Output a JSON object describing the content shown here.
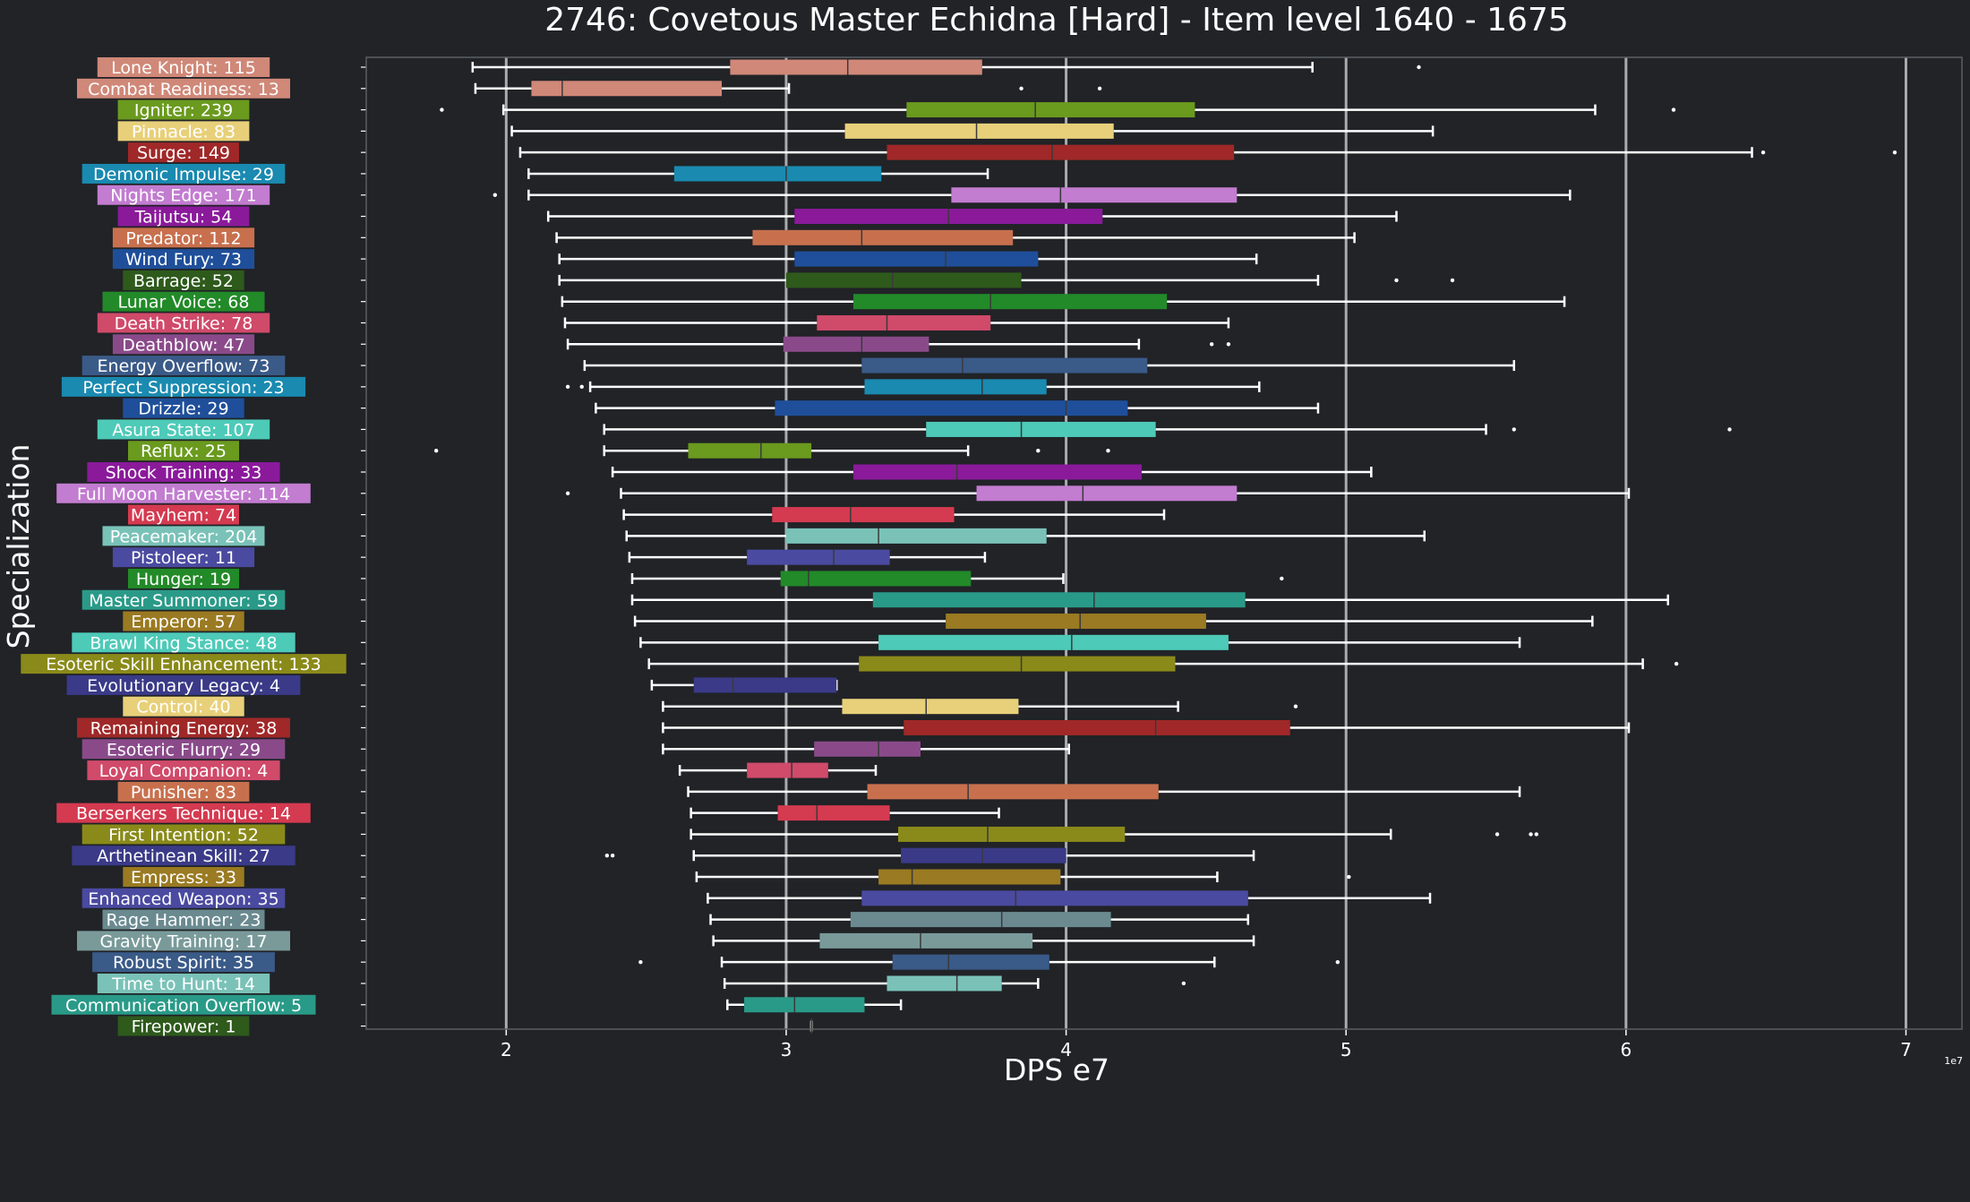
{
  "chart_data": {
    "type": "boxplot",
    "title": "2746: Covetous Master Echidna [Hard] - Item level 1640 - 1675",
    "xlabel": "DPS e7",
    "ylabel": "Specialization",
    "x_multiplier_label": "1e7",
    "xlim": [
      1.5,
      7.2
    ],
    "x_ticks": [
      2,
      3,
      4,
      5,
      6,
      7
    ],
    "x_tick_labels": [
      "2",
      "3",
      "4",
      "5",
      "6",
      "7"
    ],
    "grid": "vertical",
    "background": "#212327",
    "text_color": "#ffffff",
    "series": [
      {
        "label": "Lone Knight: 115",
        "color": "#d08878",
        "whisker_low": 1.88,
        "q1": 2.8,
        "median": 3.22,
        "q3": 3.7,
        "whisker_high": 4.88,
        "outliers": [
          5.26
        ]
      },
      {
        "label": "Combat Readiness: 13",
        "color": "#d08878",
        "whisker_low": 1.89,
        "q1": 2.09,
        "median": 2.2,
        "q3": 2.77,
        "whisker_high": 3.01,
        "outliers": [
          3.84,
          4.12
        ]
      },
      {
        "label": "Igniter: 239",
        "color": "#6a9a1e",
        "whisker_low": 1.99,
        "q1": 3.43,
        "median": 3.89,
        "q3": 4.46,
        "whisker_high": 5.89,
        "outliers": [
          1.77,
          6.17
        ]
      },
      {
        "label": "Pinnacle: 83",
        "color": "#e8d07a",
        "whisker_low": 2.02,
        "q1": 3.21,
        "median": 3.68,
        "q3": 4.17,
        "whisker_high": 5.31,
        "outliers": []
      },
      {
        "label": "Surge: 149",
        "color": "#a02828",
        "whisker_low": 2.05,
        "q1": 3.36,
        "median": 3.95,
        "q3": 4.6,
        "whisker_high": 6.45,
        "outliers": [
          6.49,
          6.96
        ]
      },
      {
        "label": "Demonic Impulse: 29",
        "color": "#1a8ab0",
        "whisker_low": 2.08,
        "q1": 2.6,
        "median": 3.0,
        "q3": 3.34,
        "whisker_high": 3.72,
        "outliers": []
      },
      {
        "label": "Nights Edge: 171",
        "color": "#c27cd0",
        "whisker_low": 2.08,
        "q1": 3.59,
        "median": 3.98,
        "q3": 4.61,
        "whisker_high": 5.8,
        "outliers": [
          1.96
        ]
      },
      {
        "label": "Taijutsu: 54",
        "color": "#8a1a9a",
        "whisker_low": 2.15,
        "q1": 3.03,
        "median": 3.58,
        "q3": 4.13,
        "whisker_high": 5.18,
        "outliers": []
      },
      {
        "label": "Predator: 112",
        "color": "#c8704e",
        "whisker_low": 2.18,
        "q1": 2.88,
        "median": 3.27,
        "q3": 3.81,
        "whisker_high": 5.03,
        "outliers": []
      },
      {
        "label": "Wind Fury: 73",
        "color": "#1f4f9a",
        "whisker_low": 2.19,
        "q1": 3.03,
        "median": 3.57,
        "q3": 3.9,
        "whisker_high": 4.68,
        "outliers": []
      },
      {
        "label": "Barrage: 52",
        "color": "#2e5a1c",
        "whisker_low": 2.19,
        "q1": 3.0,
        "median": 3.38,
        "q3": 3.84,
        "whisker_high": 4.9,
        "outliers": [
          5.18,
          5.38
        ]
      },
      {
        "label": "Lunar Voice: 68",
        "color": "#228a28",
        "whisker_low": 2.2,
        "q1": 3.24,
        "median": 3.73,
        "q3": 4.36,
        "whisker_high": 5.78,
        "outliers": []
      },
      {
        "label": "Death Strike: 78",
        "color": "#d04a6a",
        "whisker_low": 2.21,
        "q1": 3.11,
        "median": 3.36,
        "q3": 3.73,
        "whisker_high": 4.58,
        "outliers": []
      },
      {
        "label": "Deathblow: 47",
        "color": "#8a4a8a",
        "whisker_low": 2.22,
        "q1": 2.99,
        "median": 3.27,
        "q3": 3.51,
        "whisker_high": 4.26,
        "outliers": [
          4.52,
          4.58
        ]
      },
      {
        "label": "Energy Overflow: 73",
        "color": "#3a5a88",
        "whisker_low": 2.28,
        "q1": 3.27,
        "median": 3.63,
        "q3": 4.29,
        "whisker_high": 5.6,
        "outliers": []
      },
      {
        "label": "Perfect Suppression: 23",
        "color": "#1a8ab0",
        "whisker_low": 2.3,
        "q1": 3.28,
        "median": 3.7,
        "q3": 3.93,
        "whisker_high": 4.69,
        "outliers": [
          2.22,
          2.27
        ]
      },
      {
        "label": "Drizzle: 29",
        "color": "#1f4f9a",
        "whisker_low": 2.32,
        "q1": 2.96,
        "median": 4.0,
        "q3": 4.22,
        "whisker_high": 4.9,
        "outliers": []
      },
      {
        "label": "Asura State: 107",
        "color": "#4ecab8",
        "whisker_low": 2.35,
        "q1": 3.5,
        "median": 3.84,
        "q3": 4.32,
        "whisker_high": 5.5,
        "outliers": [
          5.6,
          6.37
        ]
      },
      {
        "label": "Reflux: 25",
        "color": "#6a9a1e",
        "whisker_low": 2.35,
        "q1": 2.65,
        "median": 2.91,
        "q3": 3.09,
        "whisker_high": 3.65,
        "outliers": [
          1.75,
          3.9,
          4.15
        ]
      },
      {
        "label": "Shock Training: 33",
        "color": "#8a1a9a",
        "whisker_low": 2.38,
        "q1": 3.24,
        "median": 3.61,
        "q3": 4.27,
        "whisker_high": 5.09,
        "outliers": []
      },
      {
        "label": "Full Moon Harvester: 114",
        "color": "#c27cd0",
        "whisker_low": 2.41,
        "q1": 3.68,
        "median": 4.06,
        "q3": 4.61,
        "whisker_high": 6.01,
        "outliers": [
          2.22
        ]
      },
      {
        "label": "Mayhem: 74",
        "color": "#d43a50",
        "whisker_low": 2.42,
        "q1": 2.95,
        "median": 3.23,
        "q3": 3.6,
        "whisker_high": 4.35,
        "outliers": []
      },
      {
        "label": "Peacemaker: 204",
        "color": "#7ac2b8",
        "whisker_low": 2.43,
        "q1": 3.0,
        "median": 3.33,
        "q3": 3.93,
        "whisker_high": 5.28,
        "outliers": []
      },
      {
        "label": "Pistoleer: 11",
        "color": "#4a4aa0",
        "whisker_low": 2.44,
        "q1": 2.86,
        "median": 3.17,
        "q3": 3.37,
        "whisker_high": 3.71,
        "outliers": []
      },
      {
        "label": "Hunger: 19",
        "color": "#228a28",
        "whisker_low": 2.45,
        "q1": 2.98,
        "median": 3.08,
        "q3": 3.66,
        "whisker_high": 3.99,
        "outliers": [
          4.77
        ]
      },
      {
        "label": "Master Summoner: 59",
        "color": "#2a9a88",
        "whisker_low": 2.45,
        "q1": 3.31,
        "median": 4.1,
        "q3": 4.64,
        "whisker_high": 6.15,
        "outliers": []
      },
      {
        "label": "Emperor: 57",
        "color": "#9a7a22",
        "whisker_low": 2.46,
        "q1": 3.57,
        "median": 4.05,
        "q3": 4.5,
        "whisker_high": 5.88,
        "outliers": []
      },
      {
        "label": "Brawl King Stance: 48",
        "color": "#4ecab8",
        "whisker_low": 2.48,
        "q1": 3.33,
        "median": 4.02,
        "q3": 4.58,
        "whisker_high": 5.62,
        "outliers": []
      },
      {
        "label": "Esoteric Skill Enhancement: 133",
        "color": "#8a8a1a",
        "whisker_low": 2.51,
        "q1": 3.26,
        "median": 3.84,
        "q3": 4.39,
        "whisker_high": 6.06,
        "outliers": [
          6.18
        ]
      },
      {
        "label": "Evolutionary Legacy: 4",
        "color": "#3a3a88",
        "whisker_low": 2.52,
        "q1": 2.67,
        "median": 2.81,
        "q3": 3.18,
        "whisker_high": 3.18,
        "outliers": []
      },
      {
        "label": "Control: 40",
        "color": "#e8d07a",
        "whisker_low": 2.56,
        "q1": 3.2,
        "median": 3.5,
        "q3": 3.83,
        "whisker_high": 4.4,
        "outliers": [
          4.82
        ]
      },
      {
        "label": "Remaining Energy: 38",
        "color": "#a02828",
        "whisker_low": 2.56,
        "q1": 3.42,
        "median": 4.32,
        "q3": 4.8,
        "whisker_high": 6.01,
        "outliers": []
      },
      {
        "label": "Esoteric Flurry: 29",
        "color": "#8a4a8a",
        "whisker_low": 2.56,
        "q1": 3.1,
        "median": 3.33,
        "q3": 3.48,
        "whisker_high": 4.01,
        "outliers": []
      },
      {
        "label": "Loyal Companion: 4",
        "color": "#d04a6a",
        "whisker_low": 2.62,
        "q1": 2.86,
        "median": 3.02,
        "q3": 3.15,
        "whisker_high": 3.32,
        "outliers": []
      },
      {
        "label": "Punisher: 83",
        "color": "#c8704e",
        "whisker_low": 2.65,
        "q1": 3.29,
        "median": 3.65,
        "q3": 4.33,
        "whisker_high": 5.62,
        "outliers": []
      },
      {
        "label": "Berserkers Technique: 14",
        "color": "#d43a50",
        "whisker_low": 2.66,
        "q1": 2.97,
        "median": 3.11,
        "q3": 3.37,
        "whisker_high": 3.76,
        "outliers": []
      },
      {
        "label": "First Intention: 52",
        "color": "#8a8a1a",
        "whisker_low": 2.66,
        "q1": 3.4,
        "median": 3.72,
        "q3": 4.21,
        "whisker_high": 5.16,
        "outliers": [
          5.54,
          5.66,
          5.68
        ]
      },
      {
        "label": "Arthetinean Skill: 27",
        "color": "#3a3a88",
        "whisker_low": 2.67,
        "q1": 3.41,
        "median": 3.7,
        "q3": 4.0,
        "whisker_high": 4.67,
        "outliers": [
          2.36,
          2.38
        ]
      },
      {
        "label": "Empress: 33",
        "color": "#9a7a22",
        "whisker_low": 2.68,
        "q1": 3.33,
        "median": 3.45,
        "q3": 3.98,
        "whisker_high": 4.54,
        "outliers": [
          5.01
        ]
      },
      {
        "label": "Enhanced Weapon: 35",
        "color": "#4a4aa0",
        "whisker_low": 2.72,
        "q1": 3.27,
        "median": 3.82,
        "q3": 4.65,
        "whisker_high": 5.3,
        "outliers": []
      },
      {
        "label": "Rage Hammer: 23",
        "color": "#6a8a90",
        "whisker_low": 2.73,
        "q1": 3.23,
        "median": 3.77,
        "q3": 4.16,
        "whisker_high": 4.65,
        "outliers": []
      },
      {
        "label": "Gravity Training: 17",
        "color": "#7a9a9a",
        "whisker_low": 2.74,
        "q1": 3.12,
        "median": 3.48,
        "q3": 3.88,
        "whisker_high": 4.67,
        "outliers": []
      },
      {
        "label": "Robust Spirit: 35",
        "color": "#3a5a88",
        "whisker_low": 2.77,
        "q1": 3.38,
        "median": 3.58,
        "q3": 3.94,
        "whisker_high": 4.53,
        "outliers": [
          2.48,
          4.97
        ]
      },
      {
        "label": "Time to Hunt: 14",
        "color": "#7ac2b8",
        "whisker_low": 2.78,
        "q1": 3.36,
        "median": 3.61,
        "q3": 3.77,
        "whisker_high": 3.9,
        "outliers": [
          4.42
        ]
      },
      {
        "label": "Communication Overflow: 5",
        "color": "#2a9a88",
        "whisker_low": 2.79,
        "q1": 2.85,
        "median": 3.03,
        "q3": 3.28,
        "whisker_high": 3.41,
        "outliers": []
      },
      {
        "label": "Firepower: 1",
        "color": "#2e5a1c",
        "whisker_low": 3.09,
        "q1": 3.09,
        "median": 3.09,
        "q3": 3.09,
        "whisker_high": 3.09,
        "outliers": []
      }
    ]
  }
}
